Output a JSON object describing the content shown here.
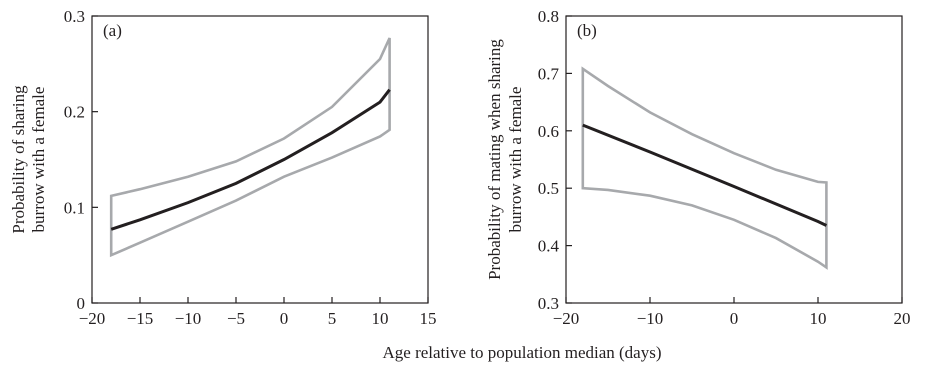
{
  "figure": {
    "shared_xlabel": "Age relative to population median (days)"
  },
  "chart_data": [
    {
      "type": "line",
      "panel_label": "(a)",
      "ylabel_lines": [
        "Probability of sharing",
        "burrow with a female"
      ],
      "xlim": [
        -20,
        15
      ],
      "ylim": [
        0,
        0.3
      ],
      "xticks": [
        -20,
        -15,
        -10,
        -5,
        0,
        5,
        10,
        15
      ],
      "yticks": [
        0,
        0.1,
        0.2,
        0.3
      ],
      "xtick_labels": [
        "−20",
        "−15",
        "−10",
        "−5",
        "0",
        "5",
        "10",
        "15"
      ],
      "ytick_labels": [
        "0",
        "0.1",
        "0.2",
        "0.3"
      ],
      "grid": false,
      "colors": {
        "mean": "#231f20",
        "interval": "#a7a9ac"
      },
      "series": [
        {
          "role": "mean",
          "x": [
            -18,
            -15,
            -10,
            -5,
            0,
            5,
            10,
            11
          ],
          "y": [
            0.077,
            0.087,
            0.105,
            0.125,
            0.15,
            0.178,
            0.21,
            0.223
          ]
        },
        {
          "role": "upper",
          "x": [
            -18,
            -15,
            -10,
            -5,
            0,
            5,
            10,
            11
          ],
          "y": [
            0.112,
            0.119,
            0.132,
            0.148,
            0.172,
            0.205,
            0.255,
            0.277
          ]
        },
        {
          "role": "lower",
          "x": [
            -18,
            -15,
            -10,
            -5,
            0,
            5,
            10,
            11
          ],
          "y": [
            0.05,
            0.063,
            0.085,
            0.107,
            0.132,
            0.152,
            0.174,
            0.181
          ]
        }
      ]
    },
    {
      "type": "line",
      "panel_label": "(b)",
      "ylabel_lines": [
        "Probability of mating when sharing",
        "burrow with a female"
      ],
      "xlim": [
        -20,
        20
      ],
      "ylim": [
        0.3,
        0.8
      ],
      "xticks": [
        -20,
        -10,
        0,
        10,
        20
      ],
      "yticks": [
        0.3,
        0.4,
        0.5,
        0.6,
        0.7,
        0.8
      ],
      "xtick_labels": [
        "−20",
        "−10",
        "0",
        "10",
        "20"
      ],
      "ytick_labels": [
        "0.3",
        "0.4",
        "0.5",
        "0.6",
        "0.7",
        "0.8"
      ],
      "grid": false,
      "colors": {
        "mean": "#231f20",
        "interval": "#a7a9ac"
      },
      "series": [
        {
          "role": "mean",
          "x": [
            -18,
            -10,
            0,
            10,
            11
          ],
          "y": [
            0.61,
            0.563,
            0.503,
            0.442,
            0.435
          ]
        },
        {
          "role": "upper",
          "x": [
            -18,
            -15,
            -10,
            -5,
            0,
            5,
            10,
            11
          ],
          "y": [
            0.708,
            0.678,
            0.632,
            0.594,
            0.561,
            0.532,
            0.511,
            0.51
          ]
        },
        {
          "role": "lower",
          "x": [
            -18,
            -15,
            -10,
            -5,
            0,
            5,
            10,
            11
          ],
          "y": [
            0.5,
            0.497,
            0.487,
            0.47,
            0.445,
            0.413,
            0.372,
            0.362
          ]
        }
      ]
    }
  ]
}
